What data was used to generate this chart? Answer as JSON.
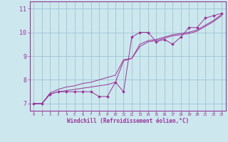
{
  "xlabel": "Windchill (Refroidissement éolien,°C)",
  "bg_color": "#cce8ee",
  "line_color": "#993399",
  "grid_color": "#99bbcc",
  "xlim": [
    -0.5,
    23.5
  ],
  "ylim": [
    6.7,
    11.3
  ],
  "yticks": [
    7,
    8,
    9,
    10,
    11
  ],
  "xticks": [
    0,
    1,
    2,
    3,
    4,
    5,
    6,
    7,
    8,
    9,
    10,
    11,
    12,
    13,
    14,
    15,
    16,
    17,
    18,
    19,
    20,
    21,
    22,
    23
  ],
  "line1_x": [
    0,
    1,
    2,
    3,
    4,
    5,
    6,
    7,
    8,
    9,
    10,
    11,
    12,
    13,
    14,
    15,
    16,
    17,
    18,
    19,
    20,
    21,
    22,
    23
  ],
  "line1_y": [
    7.0,
    7.0,
    7.4,
    7.5,
    7.5,
    7.5,
    7.5,
    7.5,
    7.3,
    7.3,
    7.9,
    7.5,
    9.8,
    10.0,
    10.0,
    9.6,
    9.7,
    9.5,
    9.8,
    10.2,
    10.2,
    10.6,
    10.7,
    10.8
  ],
  "line2_x": [
    0,
    1,
    2,
    3,
    4,
    5,
    6,
    7,
    8,
    9,
    10,
    11,
    12,
    13,
    14,
    15,
    16,
    17,
    18,
    19,
    20,
    21,
    22,
    23
  ],
  "line2_y": [
    7.0,
    7.0,
    7.45,
    7.6,
    7.7,
    7.75,
    7.85,
    7.9,
    8.0,
    8.1,
    8.2,
    8.85,
    8.9,
    9.5,
    9.65,
    9.7,
    9.8,
    9.9,
    9.95,
    10.0,
    10.1,
    10.3,
    10.5,
    10.75
  ],
  "line3_x": [
    0,
    1,
    2,
    3,
    4,
    5,
    6,
    7,
    8,
    9,
    10,
    11,
    12,
    13,
    14,
    15,
    16,
    17,
    18,
    19,
    20,
    21,
    22,
    23
  ],
  "line3_y": [
    7.0,
    7.0,
    7.4,
    7.5,
    7.55,
    7.6,
    7.65,
    7.7,
    7.75,
    7.8,
    7.9,
    8.8,
    8.9,
    9.4,
    9.6,
    9.65,
    9.75,
    9.85,
    9.9,
    9.95,
    10.05,
    10.25,
    10.45,
    10.7
  ]
}
